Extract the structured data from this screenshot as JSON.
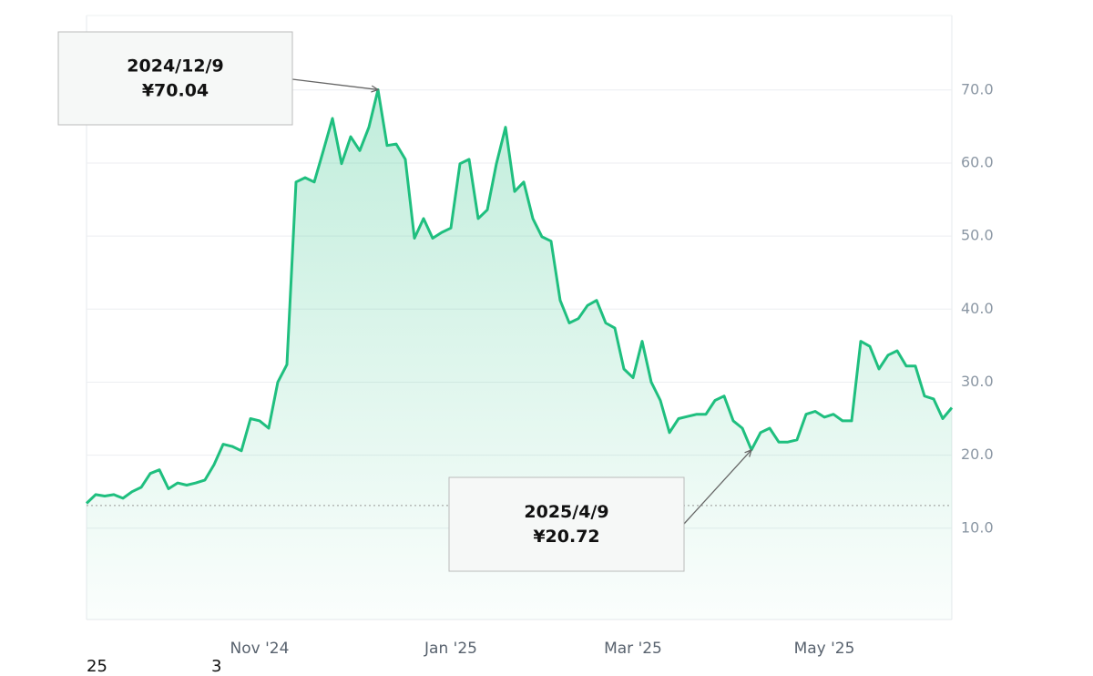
{
  "chart_data": {
    "type": "line",
    "categories": [
      null,
      null,
      null,
      null,
      null,
      null,
      null,
      null,
      null,
      null,
      null,
      null,
      null,
      null,
      null,
      null,
      null,
      null,
      null,
      "Nov '24",
      null,
      null,
      null,
      null,
      null,
      null,
      null,
      null,
      null,
      null,
      null,
      null,
      null,
      null,
      null,
      null,
      null,
      null,
      null,
      null,
      "Jan '25",
      null,
      null,
      null,
      null,
      null,
      null,
      null,
      null,
      null,
      null,
      null,
      null,
      null,
      null,
      null,
      null,
      null,
      null,
      null,
      "Mar '25",
      null,
      null,
      null,
      null,
      null,
      null,
      null,
      null,
      null,
      null,
      null,
      null,
      null,
      null,
      null,
      null,
      null,
      null,
      null,
      null,
      "May '25",
      null,
      null,
      null,
      null,
      null,
      null,
      null,
      null,
      null,
      null,
      null,
      null,
      null,
      null
    ],
    "series": [
      {
        "color": "#1fbf7f",
        "values": [
          13.4,
          14.6,
          14.4,
          14.6,
          14.1,
          15.0,
          15.6,
          17.5,
          18.0,
          15.4,
          16.2,
          15.9,
          16.2,
          16.6,
          18.7,
          21.5,
          21.2,
          20.6,
          25.0,
          24.7,
          23.7,
          30.0,
          32.4,
          57.4,
          58.0,
          57.4,
          61.7,
          66.1,
          59.9,
          63.6,
          61.7,
          64.9,
          70.04,
          62.4,
          62.6,
          60.5,
          49.7,
          52.4,
          49.7,
          50.5,
          51.1,
          59.9,
          60.5,
          52.4,
          53.6,
          59.9,
          64.9,
          56.1,
          57.4,
          52.4,
          49.9,
          49.3,
          41.2,
          38.1,
          38.7,
          40.5,
          41.2,
          38.1,
          37.4,
          31.8,
          30.6,
          35.6,
          30.0,
          27.5,
          23.1,
          25.0,
          25.3,
          25.6,
          25.6,
          27.5,
          28.1,
          24.7,
          23.7,
          20.72,
          23.1,
          23.7,
          21.8,
          21.8,
          22.1,
          25.6,
          26.0,
          25.2,
          25.6,
          24.7,
          24.7,
          35.6,
          34.9,
          31.8,
          33.7,
          34.3,
          32.2,
          32.2,
          28.1,
          27.7,
          25.0,
          26.5
        ]
      }
    ],
    "reference_line": 13.1,
    "ylim": [
      -2.5,
      80.2
    ],
    "yticks": [
      {
        "value": 10,
        "label": "10.0"
      },
      {
        "value": 20,
        "label": "20.0"
      },
      {
        "value": 30,
        "label": "30.0"
      },
      {
        "value": 40,
        "label": "40.0"
      },
      {
        "value": 50,
        "label": "50.0"
      },
      {
        "value": 60,
        "label": "60.0"
      },
      {
        "value": 70,
        "label": "70.0"
      }
    ],
    "grid": true,
    "annotations": [
      {
        "date": "2024/12/9",
        "price": "¥70.04"
      },
      {
        "date": "2025/4/9",
        "price": "¥20.72"
      }
    ],
    "footer_texts": [
      "25",
      "3"
    ]
  }
}
